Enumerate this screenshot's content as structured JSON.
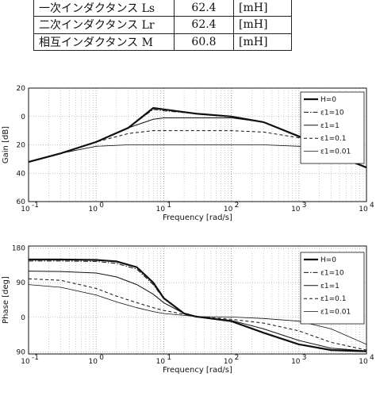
{
  "table": {
    "rows": [
      {
        "label": "一次インダクタンス Ls",
        "value": "62.4",
        "unit": "[mH]"
      },
      {
        "label": "二次インダクタンス Lr",
        "value": "62.4",
        "unit": "[mH]"
      },
      {
        "label": "相互インダクタンス M",
        "value": "60.8",
        "unit": "[mH]"
      }
    ]
  },
  "chart_data": [
    {
      "type": "line",
      "title": "",
      "xlabel": "Frequency [rad/s]",
      "ylabel": "Gain [dB]",
      "xscale": "log",
      "xlim": [
        0.1,
        10000
      ],
      "ylim": [
        -60,
        20
      ],
      "xticklabels": [
        "10",
        "10",
        "10",
        "10",
        "10",
        "10"
      ],
      "xtickexps": [
        "-1",
        "0",
        "1",
        "2",
        "3",
        "4"
      ],
      "yticks": [
        20,
        0,
        -20,
        -40,
        -60
      ],
      "yticklabels": [
        "20",
        "0",
        "20",
        "40",
        "60"
      ],
      "grid": true,
      "legend": "top-right",
      "series": [
        {
          "name": "H=0",
          "x": [
            0.1,
            0.3,
            1,
            3,
            7,
            10,
            30,
            100,
            300,
            1000,
            3000,
            10000
          ],
          "y": [
            -32,
            -26,
            -18,
            -8,
            6,
            5,
            2,
            0,
            -4,
            -14,
            -26,
            -36
          ]
        },
        {
          "name": "ε1=10",
          "x": [
            0.1,
            0.3,
            1,
            3,
            7,
            10,
            30,
            100,
            300,
            1000,
            3000,
            10000
          ],
          "y": [
            -32,
            -26,
            -18,
            -8,
            5,
            4,
            2,
            0,
            -4,
            -14,
            -26,
            -36
          ]
        },
        {
          "name": "ε1=1",
          "x": [
            0.1,
            0.3,
            1,
            3,
            7,
            10,
            30,
            100,
            300,
            1000,
            3000,
            10000
          ],
          "y": [
            -32,
            -26,
            -18,
            -8,
            -2,
            -1,
            -1,
            -1,
            -4,
            -14,
            -26,
            -36
          ]
        },
        {
          "name": "ε1=0.1",
          "x": [
            0.1,
            0.3,
            1,
            3,
            7,
            10,
            30,
            100,
            300,
            1000,
            3000,
            10000
          ],
          "y": [
            -32,
            -26,
            -18,
            -12,
            -10,
            -10,
            -10,
            -10,
            -11,
            -15,
            -26,
            -36
          ]
        },
        {
          "name": "ε1=0.01",
          "x": [
            0.1,
            0.3,
            1,
            3,
            7,
            10,
            30,
            100,
            300,
            1000,
            3000,
            10000
          ],
          "y": [
            -32,
            -26,
            -21,
            -20,
            -20,
            -20,
            -20,
            -20,
            -20,
            -21,
            -27,
            -36
          ]
        }
      ]
    },
    {
      "type": "line",
      "title": "",
      "xlabel": "Frequency [rad/s]",
      "ylabel": "Phase [deg]",
      "xscale": "log",
      "xlim": [
        0.1,
        10000
      ],
      "ylim": [
        -95,
        185
      ],
      "xticklabels": [
        "10",
        "10",
        "10",
        "10",
        "10",
        "10"
      ],
      "xtickexps": [
        "-1",
        "0",
        "1",
        "2",
        "3",
        "4"
      ],
      "yticks": [
        180,
        90,
        0,
        -90
      ],
      "yticklabels": [
        "180",
        "90",
        "0",
        "90"
      ],
      "grid": true,
      "legend": "right",
      "series": [
        {
          "name": "H=0",
          "x": [
            0.1,
            0.3,
            1,
            2,
            4,
            7,
            10,
            20,
            30,
            100,
            300,
            1000,
            3000,
            10000
          ],
          "y": [
            150,
            150,
            149,
            145,
            130,
            90,
            50,
            10,
            2,
            -10,
            -40,
            -70,
            -85,
            -88
          ]
        },
        {
          "name": "ε1=10",
          "x": [
            0.1,
            0.3,
            1,
            2,
            4,
            7,
            10,
            20,
            30,
            100,
            300,
            1000,
            3000,
            10000
          ],
          "y": [
            146,
            146,
            145,
            140,
            125,
            85,
            48,
            10,
            2,
            -10,
            -40,
            -70,
            -85,
            -88
          ]
        },
        {
          "name": "ε1=1",
          "x": [
            0.1,
            0.3,
            1,
            2,
            4,
            7,
            10,
            20,
            30,
            100,
            300,
            1000,
            3000,
            10000
          ],
          "y": [
            120,
            119,
            115,
            105,
            85,
            60,
            38,
            10,
            2,
            -8,
            -30,
            -60,
            -80,
            -87
          ]
        },
        {
          "name": "ε1=0.1",
          "x": [
            0.1,
            0.3,
            1,
            2,
            4,
            7,
            10,
            20,
            30,
            100,
            300,
            1000,
            3000,
            10000
          ],
          "y": [
            100,
            96,
            75,
            55,
            38,
            25,
            18,
            8,
            2,
            -5,
            -15,
            -35,
            -65,
            -85
          ]
        },
        {
          "name": "ε1=0.01",
          "x": [
            0.1,
            0.3,
            1,
            2,
            4,
            7,
            10,
            20,
            30,
            100,
            300,
            1000,
            3000,
            10000
          ],
          "y": [
            85,
            78,
            58,
            40,
            25,
            15,
            10,
            5,
            2,
            1,
            -3,
            -10,
            -30,
            -70
          ]
        }
      ]
    }
  ]
}
